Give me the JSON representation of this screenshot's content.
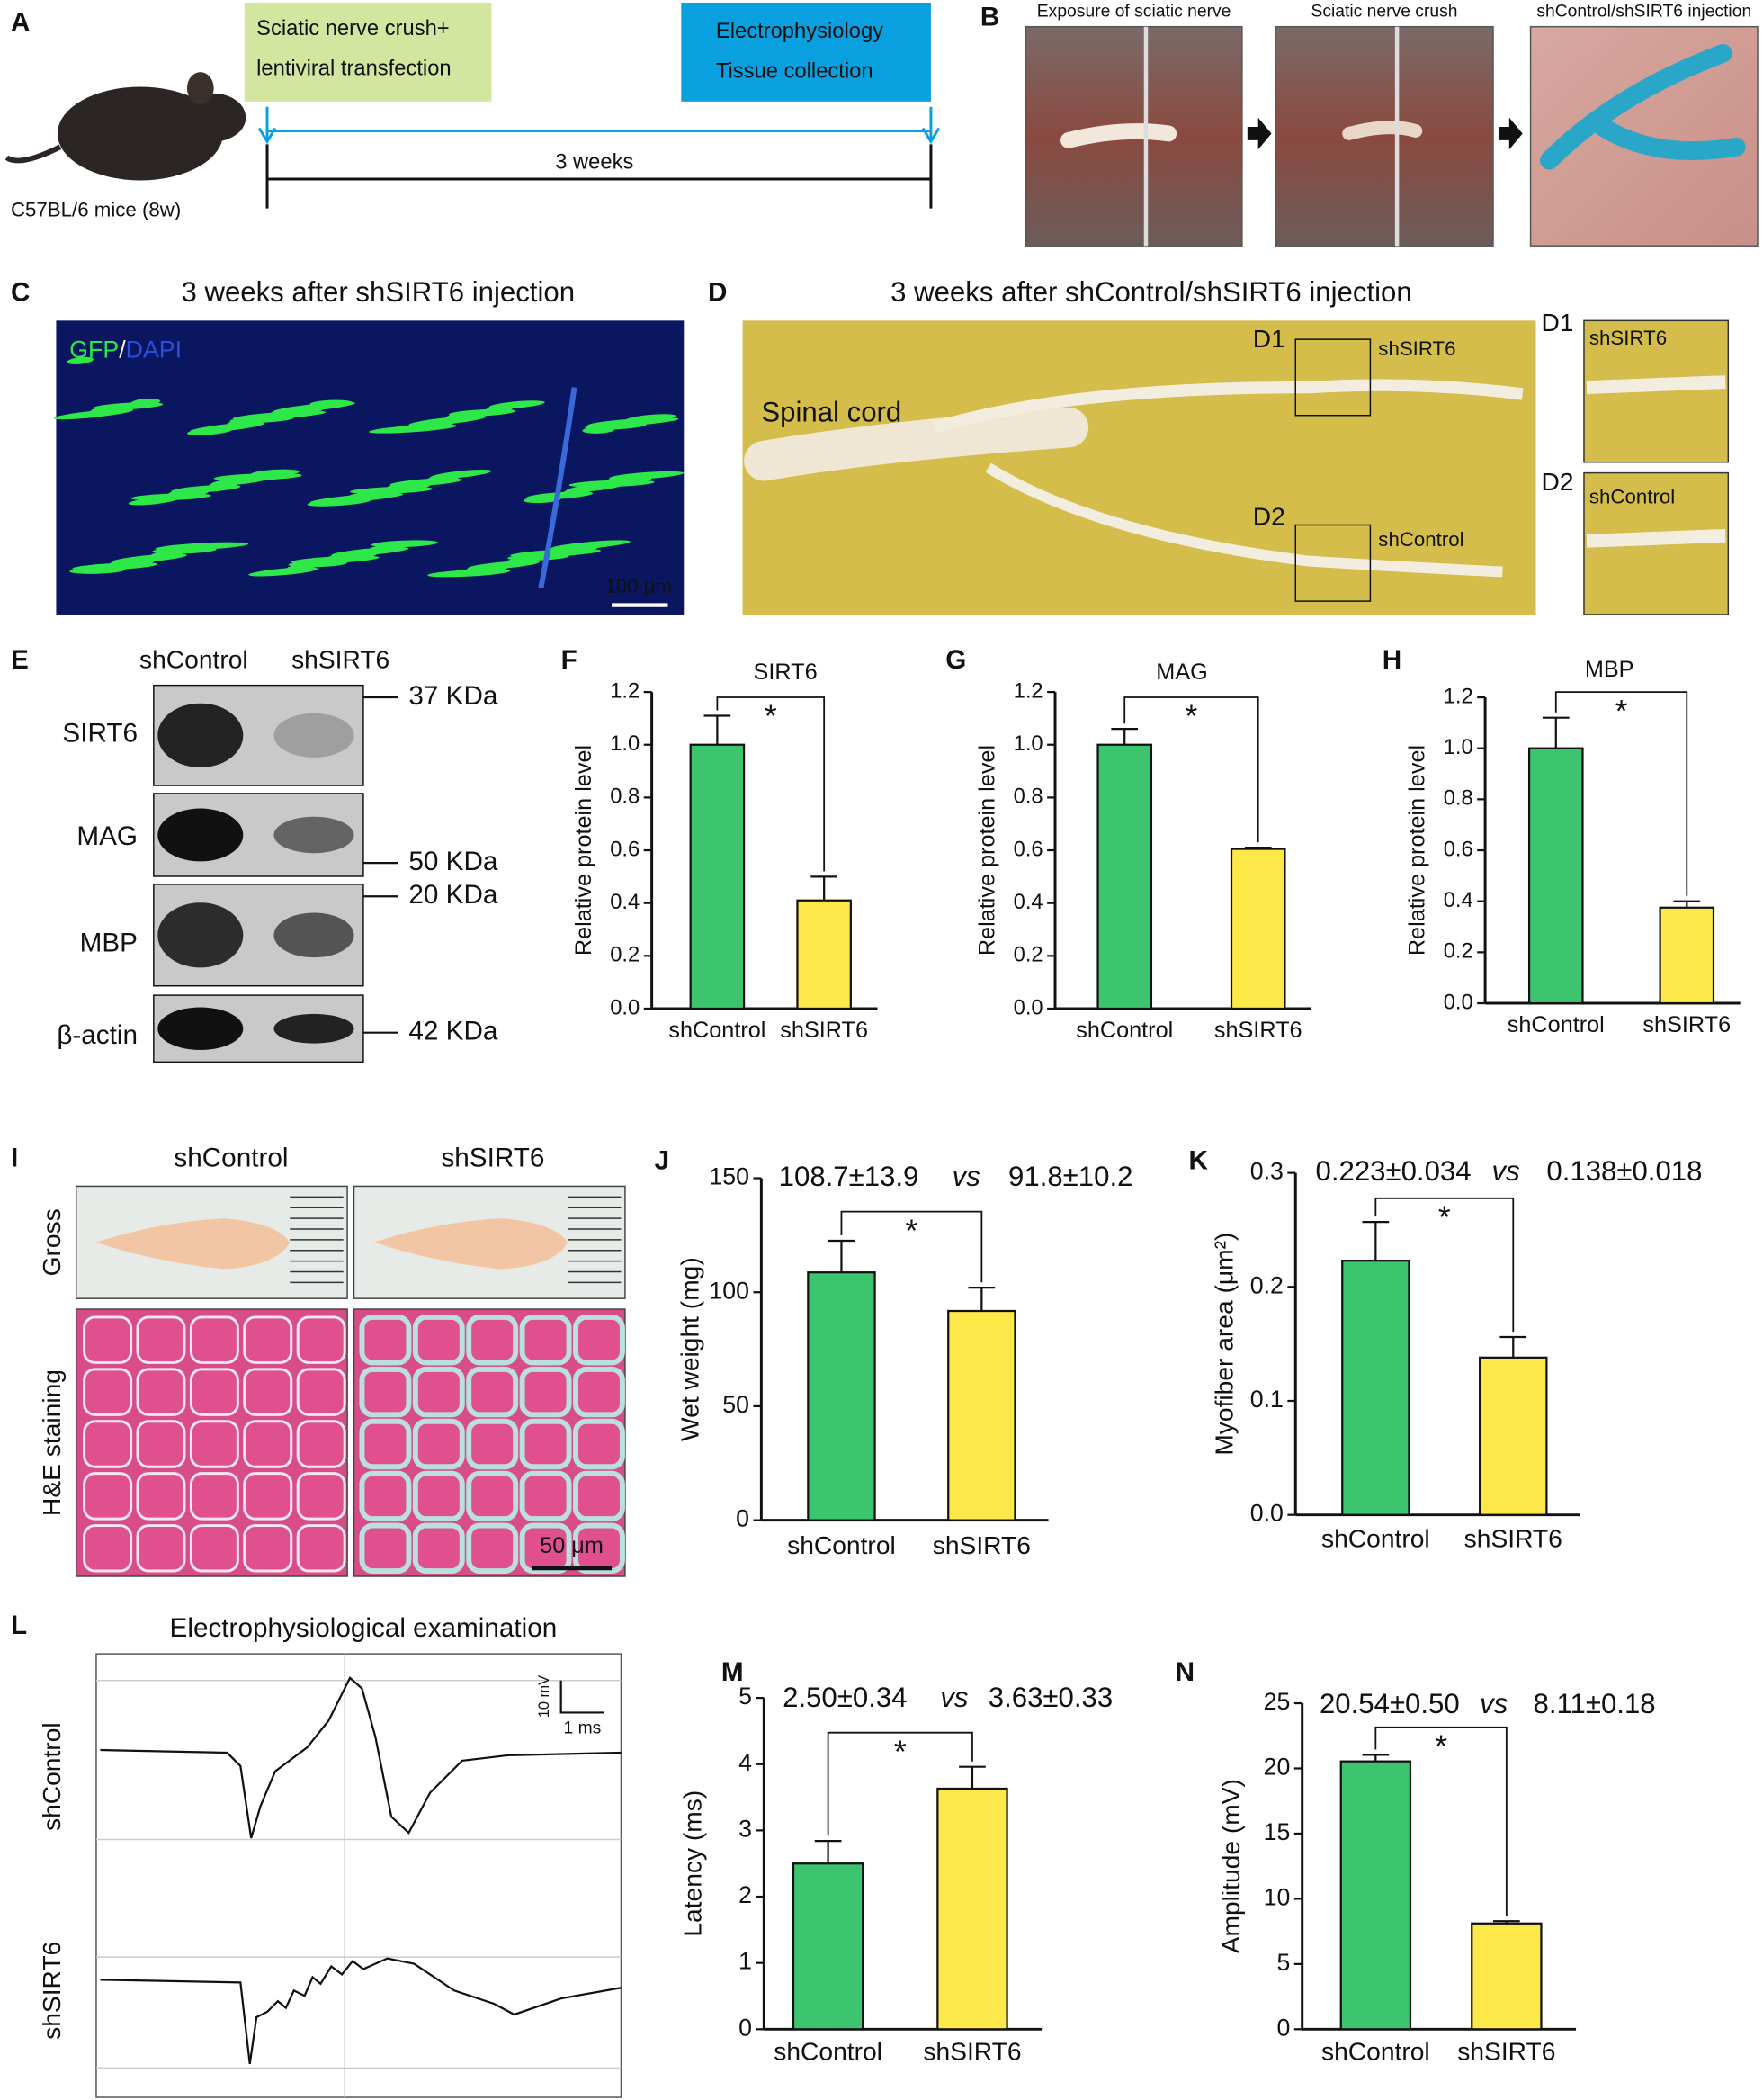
{
  "figure": {
    "a": {
      "letter": "A",
      "step1": [
        "Sciatic nerve crush+",
        "lentiviral transfection"
      ],
      "step2": [
        "Electrophysiology",
        "Tissue collection"
      ],
      "duration": "3 weeks",
      "animal": "C57BL/6 mice (8w)"
    },
    "b": {
      "letter": "B",
      "photos": [
        "Exposure of sciatic nerve",
        "Sciatic nerve crush",
        "shControl/shSIRT6 injection"
      ]
    },
    "c": {
      "letter": "C",
      "title": "3 weeks after shSIRT6 injection",
      "stain": [
        "GFP",
        "/",
        "DAPI"
      ],
      "scale": "100 μm"
    },
    "d": {
      "letter": "D",
      "title": "3 weeks after shControl/shSIRT6 injection",
      "tissue": "Spinal cord",
      "regions": [
        {
          "name": "D1",
          "label": "shSIRT6"
        },
        {
          "name": "D2",
          "label": "shControl"
        }
      ]
    },
    "e": {
      "letter": "E",
      "lanes": [
        "shControl",
        "shSIRT6"
      ],
      "proteins": [
        "SIRT6",
        "MAG",
        "MBP",
        "β-actin"
      ],
      "markers": [
        "37 KDa",
        "50 KDa",
        "20 KDa",
        "42 KDa"
      ]
    },
    "i": {
      "letter": "I",
      "groups": [
        "shControl",
        "shSIRT6"
      ],
      "rows": [
        "Gross",
        "H&E staining"
      ],
      "scale": "50 μm"
    },
    "l": {
      "letter": "L",
      "title": "Electrophysiological examination",
      "groups": [
        "shControl",
        "shSIRT6"
      ],
      "scale": [
        "10 mV",
        "1 ms"
      ]
    }
  },
  "chart_data": [
    {
      "type": "bar",
      "panel": "F",
      "title": "SIRT6",
      "ylabel": "Relative protein level",
      "categories": [
        "shControl",
        "shSIRT6"
      ],
      "values": [
        1.0,
        0.41
      ],
      "errors": [
        0.11,
        0.09
      ],
      "colors": [
        "#3cc46e",
        "#fde84a"
      ],
      "ylim": [
        0,
        1.2
      ],
      "yticks": [
        {
          "value": 0,
          "label": "0.0"
        },
        0.2,
        0.4,
        0.6,
        0.8,
        {
          "value": 1,
          "label": "1.0"
        },
        1.2
      ],
      "significance": "*"
    },
    {
      "type": "bar",
      "panel": "G",
      "title": "MAG",
      "ylabel": "Relative protein level",
      "categories": [
        "shControl",
        "shSIRT6"
      ],
      "values": [
        1.0,
        0.605
      ],
      "errors": [
        0.06,
        0.005
      ],
      "colors": [
        "#3cc46e",
        "#fde84a"
      ],
      "ylim": [
        0,
        1.2
      ],
      "yticks": [
        {
          "value": 0,
          "label": "0.0"
        },
        0.2,
        0.4,
        0.6,
        0.8,
        {
          "value": 1,
          "label": "1.0"
        },
        1.2
      ],
      "significance": "*"
    },
    {
      "type": "bar",
      "panel": "H",
      "title": "MBP",
      "ylabel": "Relative protein level",
      "categories": [
        "shControl",
        "shSIRT6"
      ],
      "values": [
        1.0,
        0.375
      ],
      "errors": [
        0.12,
        0.025
      ],
      "colors": [
        "#3cc46e",
        "#fde84a"
      ],
      "ylim": [
        0,
        1.2
      ],
      "yticks": [
        {
          "value": 0,
          "label": "0.0"
        },
        0.2,
        0.4,
        0.6,
        0.8,
        {
          "value": 1,
          "label": "1.0"
        },
        1.2
      ],
      "significance": "*"
    },
    {
      "type": "bar",
      "panel": "J",
      "annotation": [
        "108.7±13.9",
        "vs",
        "91.8±10.2"
      ],
      "ylabel": "Wet weight (mg)",
      "categories": [
        "shControl",
        "shSIRT6"
      ],
      "values": [
        108.7,
        91.8
      ],
      "errors": [
        13.9,
        10.2
      ],
      "colors": [
        "#3cc46e",
        "#fde84a"
      ],
      "ylim": [
        0,
        150
      ],
      "yticks": [
        0,
        50,
        100,
        150
      ],
      "significance": "*"
    },
    {
      "type": "bar",
      "panel": "K",
      "annotation": [
        "0.223±0.034",
        "vs",
        "0.138±0.018"
      ],
      "ylabel": "Myofiber area (μm²)",
      "categories": [
        "shControl",
        "shSIRT6"
      ],
      "values": [
        0.223,
        0.138
      ],
      "errors": [
        0.034,
        0.018
      ],
      "colors": [
        "#3cc46e",
        "#fde84a"
      ],
      "ylim": [
        0,
        0.3
      ],
      "yticks": [
        {
          "value": 0,
          "label": "0.0"
        },
        0.1,
        0.2,
        0.3
      ],
      "significance": "*"
    },
    {
      "type": "bar",
      "panel": "M",
      "annotation": [
        "2.50±0.34",
        "vs",
        "3.63±0.33"
      ],
      "ylabel": "Latency (ms)",
      "categories": [
        "shControl",
        "shSIRT6"
      ],
      "values": [
        2.5,
        3.63
      ],
      "errors": [
        0.34,
        0.33
      ],
      "colors": [
        "#3cc46e",
        "#fde84a"
      ],
      "ylim": [
        0,
        5
      ],
      "yticks": [
        0,
        1,
        2,
        3,
        4,
        5
      ],
      "significance": "*"
    },
    {
      "type": "bar",
      "panel": "N",
      "annotation": [
        "20.54±0.50",
        "vs",
        "8.11±0.18"
      ],
      "ylabel": "Amplitude (mV)",
      "categories": [
        "shControl",
        "shSIRT6"
      ],
      "values": [
        20.54,
        8.11
      ],
      "errors": [
        0.5,
        0.18
      ],
      "colors": [
        "#3cc46e",
        "#fde84a"
      ],
      "ylim": [
        0,
        25
      ],
      "yticks": [
        0,
        5,
        10,
        15,
        20,
        25
      ],
      "significance": "*"
    }
  ]
}
